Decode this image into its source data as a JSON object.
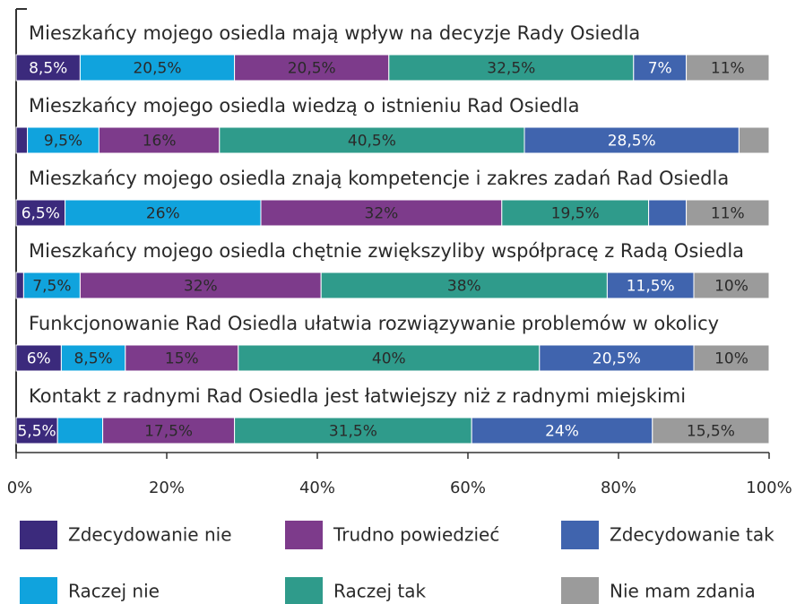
{
  "chart_data": {
    "type": "stacked-bar-horizontal",
    "categories": [
      "Mieszkańcy mojego osiedla mają wpływ na decyzje Rady Osiedla",
      "Mieszkańcy mojego osiedla wiedzą o istnieniu Rad Osiedla",
      "Mieszkańcy mojego osiedla znają kompetencje i zakres zadań Rad Osiedla",
      "Mieszkańcy mojego osiedla chętnie zwiększyliby współpracę z Radą Osiedla",
      "Funkcjonowanie Rad Osiedla ułatwia rozwiązywanie problemów w okolicy",
      "Kontakt z radnymi Rad Osiedla jest łatwiejszy niż z radnymi miejskimi"
    ],
    "series": [
      {
        "name": "Zdecydowanie nie",
        "color": "#3b2a7c",
        "values": [
          8.5,
          1.5,
          6.5,
          1,
          6,
          5.5
        ],
        "value_labels": [
          "8,5%",
          null,
          "6,5%",
          null,
          "6%",
          "5,5%"
        ]
      },
      {
        "name": "Raczej nie",
        "color": "#10a3dd",
        "values": [
          20.5,
          9.5,
          26,
          7.5,
          8.5,
          6
        ],
        "value_labels": [
          "20,5%",
          "9,5%",
          "26%",
          "7,5%",
          "8,5%",
          null
        ]
      },
      {
        "name": "Trudno powiedzieć",
        "color": "#7d3b8b",
        "values": [
          20.5,
          16,
          32,
          32,
          15,
          17.5
        ],
        "value_labels": [
          "20,5%",
          "16%",
          "32%",
          "32%",
          "15%",
          "17,5%"
        ]
      },
      {
        "name": "Raczej tak",
        "color": "#2f9b8b",
        "values": [
          32.5,
          40.5,
          19.5,
          38,
          40,
          31.5
        ],
        "value_labels": [
          "32,5%",
          "40,5%",
          "19,5%",
          "38%",
          "40%",
          "31,5%"
        ]
      },
      {
        "name": "Zdecydowanie tak",
        "color": "#4064ae",
        "values": [
          7,
          28.5,
          5,
          11.5,
          20.5,
          24
        ],
        "value_labels": [
          "7%",
          "28,5%",
          null,
          "11,5%",
          "20,5%",
          "24%"
        ]
      },
      {
        "name": "Nie mam zdania",
        "color": "#9b9b9b",
        "values": [
          11,
          4,
          11,
          10,
          10,
          15.5
        ],
        "value_labels": [
          "11%",
          null,
          "11%",
          "10%",
          "10%",
          "15,5%"
        ]
      }
    ],
    "xlim": [
      0,
      100
    ],
    "xticks": [
      {
        "value": 0,
        "label": "0%"
      },
      {
        "value": 20,
        "label": "20%"
      },
      {
        "value": 40,
        "label": "40%"
      },
      {
        "value": 60,
        "label": "60%"
      },
      {
        "value": 80,
        "label": "80%"
      },
      {
        "value": 100,
        "label": "100%"
      }
    ]
  }
}
